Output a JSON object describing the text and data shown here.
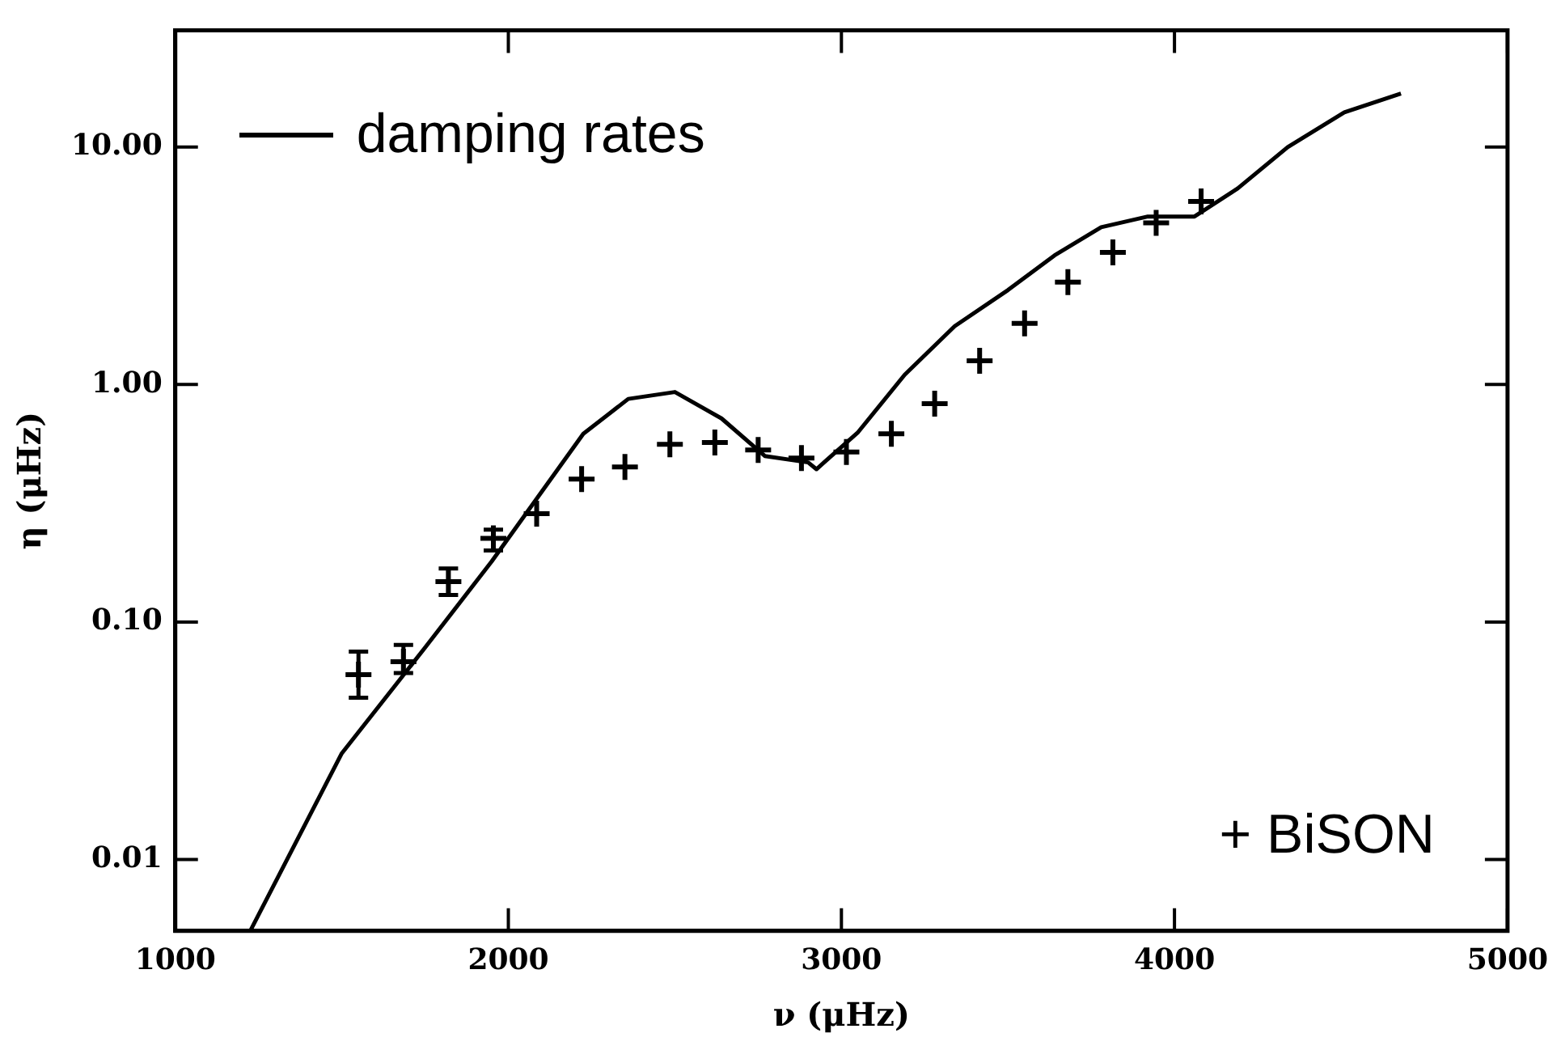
{
  "chart_data": {
    "type": "line",
    "xlabel": "ν (μHz)",
    "ylabel": "η (μHz)",
    "log": "y",
    "xlim": [
      1000,
      5000
    ],
    "xticks": [
      1000,
      2000,
      3000,
      4000,
      5000
    ],
    "ylim": [
      0.005,
      31
    ],
    "yticks": [
      {
        "value": 0.01,
        "label": "0.01"
      },
      {
        "value": 0.1,
        "label": "0.10"
      },
      {
        "value": 1,
        "label": "1.00"
      },
      {
        "value": 10,
        "label": "10.00"
      }
    ],
    "grid": false,
    "legend": "top left",
    "annotations": [
      "+ BiSON"
    ],
    "series": [
      {
        "name": "damping rates",
        "color": "#000000",
        "marker": "none",
        "x": [
          1225,
          1500,
          1750,
          1950,
          2225,
          2360,
          2500,
          2640,
          2770,
          2900,
          2925,
          3050,
          3190,
          3340,
          3500,
          3640,
          3780,
          3920,
          4060,
          4190,
          4340,
          4510,
          4680
        ],
        "values": [
          0.005,
          0.028,
          0.078,
          0.18,
          0.62,
          0.87,
          0.93,
          0.72,
          0.5,
          0.47,
          0.44,
          0.63,
          1.1,
          1.76,
          2.5,
          3.5,
          4.6,
          5.1,
          5.1,
          6.7,
          10,
          14,
          16.8
        ]
      },
      {
        "type": "scatter",
        "color": "#000000",
        "marker": "cross",
        "x": [
          1550,
          1685,
          1820,
          1955,
          2085,
          2220,
          2350,
          2485,
          2620,
          2750,
          2880,
          3015,
          3150,
          3280,
          3415,
          3550,
          3680,
          3815,
          3945,
          4080
        ],
        "values": [
          0.06,
          0.068,
          0.148,
          0.225,
          0.286,
          0.4,
          0.45,
          0.56,
          0.57,
          0.53,
          0.49,
          0.52,
          0.62,
          0.83,
          1.26,
          1.81,
          2.7,
          3.6,
          4.8,
          5.9
        ],
        "errors": [
          [
            0.048,
            0.075
          ],
          [
            0.061,
            0.08
          ],
          [
            0.13,
            0.168
          ],
          [
            0.2,
            0.245
          ],
          null,
          null,
          null,
          null,
          null,
          null,
          null,
          null,
          null,
          null,
          null,
          null,
          null,
          null,
          null,
          null
        ]
      }
    ]
  }
}
